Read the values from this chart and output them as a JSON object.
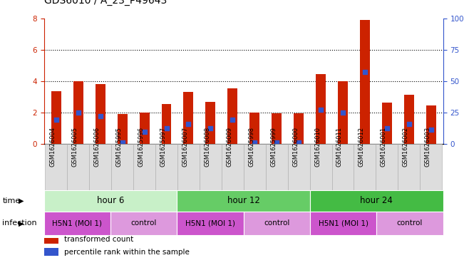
{
  "title": "GDS6010 / A_23_P49643",
  "samples": [
    "GSM1626004",
    "GSM1626005",
    "GSM1626006",
    "GSM1625995",
    "GSM1625996",
    "GSM1625997",
    "GSM1626007",
    "GSM1626008",
    "GSM1626009",
    "GSM1625998",
    "GSM1625999",
    "GSM1626000",
    "GSM1626010",
    "GSM1626011",
    "GSM1626012",
    "GSM1626001",
    "GSM1626002",
    "GSM1626003"
  ],
  "bar_values": [
    3.35,
    4.0,
    3.8,
    1.9,
    2.0,
    2.55,
    3.3,
    2.7,
    3.55,
    2.0,
    1.95,
    1.95,
    4.45,
    4.0,
    7.9,
    2.65,
    3.15,
    2.45
  ],
  "blue_dot_values": [
    1.55,
    2.0,
    1.8,
    0.1,
    0.8,
    1.0,
    1.3,
    1.0,
    1.55,
    0.1,
    0.1,
    0.1,
    2.2,
    2.0,
    4.6,
    1.0,
    1.3,
    0.9
  ],
  "bar_color": "#cc2200",
  "dot_color": "#3355cc",
  "ylim_left": [
    0,
    8
  ],
  "ylim_right": [
    0,
    100
  ],
  "yticks_left": [
    0,
    2,
    4,
    6,
    8
  ],
  "yticks_right": [
    0,
    25,
    50,
    75,
    100
  ],
  "ytick_labels_right": [
    "0",
    "25",
    "50",
    "75",
    "100%"
  ],
  "ylabel_left_color": "#cc2200",
  "ylabel_right_color": "#3355cc",
  "time_groups": [
    {
      "label": "hour 6",
      "start": 0,
      "end": 6,
      "color": "#c8f0c8"
    },
    {
      "label": "hour 12",
      "start": 6,
      "end": 12,
      "color": "#66cc66"
    },
    {
      "label": "hour 24",
      "start": 12,
      "end": 18,
      "color": "#44bb44"
    }
  ],
  "infection_groups": [
    {
      "label": "H5N1 (MOI 1)",
      "start": 0,
      "end": 3,
      "color": "#cc55cc"
    },
    {
      "label": "control",
      "start": 3,
      "end": 6,
      "color": "#dd99dd"
    },
    {
      "label": "H5N1 (MOI 1)",
      "start": 6,
      "end": 9,
      "color": "#cc55cc"
    },
    {
      "label": "control",
      "start": 9,
      "end": 12,
      "color": "#dd99dd"
    },
    {
      "label": "H5N1 (MOI 1)",
      "start": 12,
      "end": 15,
      "color": "#cc55cc"
    },
    {
      "label": "control",
      "start": 15,
      "end": 18,
      "color": "#dd99dd"
    }
  ],
  "legend_items": [
    {
      "label": "transformed count",
      "color": "#cc2200"
    },
    {
      "label": "percentile rank within the sample",
      "color": "#3355cc"
    }
  ],
  "bar_width": 0.45,
  "dot_size": 18,
  "background_color": "#ffffff",
  "time_label": "time",
  "infection_label": "infection",
  "sample_box_color": "#dddddd",
  "sample_box_edge": "#aaaaaa"
}
